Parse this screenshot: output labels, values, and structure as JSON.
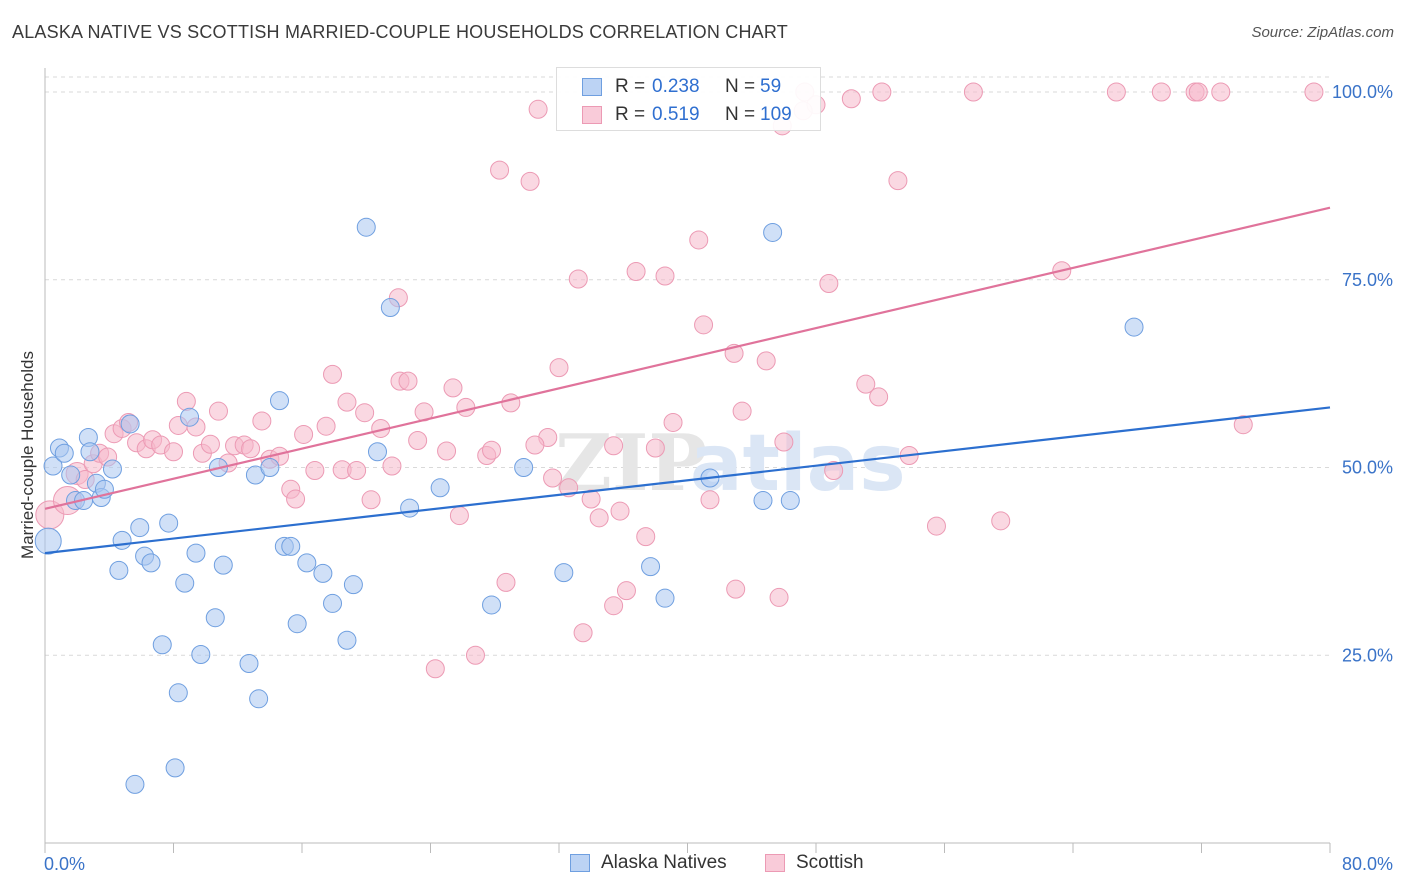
{
  "title": "ALASKA NATIVE VS SCOTTISH MARRIED-COUPLE HOUSEHOLDS CORRELATION CHART",
  "source": "Source: ZipAtlas.com",
  "watermark": {
    "zip": "ZIP",
    "atlas": "atlas"
  },
  "legend_top": {
    "rows": [
      {
        "r_label": "R =",
        "r_value": "0.238",
        "n_label": "N =",
        "n_value": "59"
      },
      {
        "r_label": "R =",
        "r_value": "0.519",
        "n_label": "N =",
        "n_value": "109"
      }
    ]
  },
  "legend_bottom": {
    "items": [
      "Alaska Natives",
      "Scottish"
    ]
  },
  "colors": {
    "blue_fill": "#a9c6f0",
    "blue_stroke": "#6f9fe0",
    "blue_line": "#2c6fcf",
    "pink_fill": "#f6b8cb",
    "pink_stroke": "#ec9ab4",
    "pink_line": "#e0739b",
    "tick_text": "#3a73c8",
    "grid": "#d9d9d9"
  },
  "chart_data": {
    "type": "scatter",
    "title": "ALASKA NATIVE VS SCOTTISH MARRIED-COUPLE HOUSEHOLDS CORRELATION CHART",
    "xlabel": "",
    "ylabel": "Married-couple Households",
    "xlim": [
      0,
      80
    ],
    "ylim": [
      0,
      102
    ],
    "x_tick_labels": [
      "0.0%",
      "80.0%"
    ],
    "y_ticks": [
      25,
      50,
      75,
      100
    ],
    "y_tick_labels": [
      "25.0%",
      "50.0%",
      "75.0%",
      "100.0%"
    ],
    "series": [
      {
        "name": "Alaska Natives",
        "r": 0.238,
        "n": 59,
        "trend": {
          "x": [
            0,
            80
          ],
          "y": [
            38.6,
            58.0
          ]
        },
        "points": [
          [
            0.2,
            40.2,
            13
          ],
          [
            0.5,
            50.2,
            9
          ],
          [
            0.9,
            52.6,
            9
          ],
          [
            1.2,
            51.9,
            9
          ],
          [
            1.6,
            49.0,
            9
          ],
          [
            1.9,
            45.6,
            9
          ],
          [
            2.4,
            45.6,
            9
          ],
          [
            2.7,
            54.0,
            9
          ],
          [
            2.8,
            52.1,
            9
          ],
          [
            3.2,
            47.9,
            9
          ],
          [
            3.5,
            46.0,
            9
          ],
          [
            3.7,
            47.1,
            9
          ],
          [
            4.2,
            49.8,
            9
          ],
          [
            4.6,
            36.3,
            9
          ],
          [
            4.8,
            40.3,
            9
          ],
          [
            5.3,
            55.8,
            9
          ],
          [
            5.9,
            42.0,
            9
          ],
          [
            6.2,
            38.2,
            9
          ],
          [
            6.6,
            37.3,
            9
          ],
          [
            7.3,
            26.4,
            9
          ],
          [
            7.7,
            42.6,
            9
          ],
          [
            8.1,
            10.0,
            9
          ],
          [
            8.3,
            20.0,
            9
          ],
          [
            8.7,
            34.6,
            9
          ],
          [
            9.4,
            38.6,
            9
          ],
          [
            9.0,
            56.7,
            9
          ],
          [
            9.7,
            25.1,
            9
          ],
          [
            10.6,
            30.0,
            9
          ],
          [
            10.8,
            50.0,
            9
          ],
          [
            11.1,
            37.0,
            9
          ],
          [
            12.7,
            23.9,
            9
          ],
          [
            13.1,
            49.0,
            9
          ],
          [
            13.3,
            19.2,
            9
          ],
          [
            14.0,
            50.0,
            9
          ],
          [
            14.6,
            58.9,
            9
          ],
          [
            14.9,
            39.5,
            9
          ],
          [
            15.3,
            39.5,
            9
          ],
          [
            15.7,
            29.2,
            9
          ],
          [
            16.3,
            37.3,
            9
          ],
          [
            17.3,
            35.9,
            9
          ],
          [
            17.9,
            31.9,
            9
          ],
          [
            18.8,
            27.0,
            9
          ],
          [
            19.2,
            34.4,
            9
          ],
          [
            20.0,
            82.0,
            9
          ],
          [
            20.7,
            52.1,
            9
          ],
          [
            21.5,
            71.3,
            9
          ],
          [
            22.7,
            44.6,
            9
          ],
          [
            24.6,
            47.3,
            9
          ],
          [
            27.8,
            31.7,
            9
          ],
          [
            29.8,
            50.0,
            9
          ],
          [
            32.3,
            36.0,
            9
          ],
          [
            37.7,
            36.8,
            9
          ],
          [
            38.6,
            32.6,
            9
          ],
          [
            41.4,
            48.6,
            9
          ],
          [
            44.7,
            45.6,
            9
          ],
          [
            45.3,
            81.3,
            9
          ],
          [
            46.4,
            45.6,
            9
          ],
          [
            67.8,
            68.7,
            9
          ],
          [
            5.6,
            7.8,
            9
          ]
        ]
      },
      {
        "name": "Scottish",
        "r": 0.519,
        "n": 109,
        "trend": {
          "x": [
            0,
            80
          ],
          "y": [
            44.5,
            84.6
          ]
        },
        "points": [
          [
            0.3,
            43.7,
            14
          ],
          [
            1.4,
            45.6,
            14
          ],
          [
            2.0,
            49.2,
            11
          ],
          [
            2.5,
            48.4,
            9
          ],
          [
            3.0,
            50.5,
            9
          ],
          [
            3.4,
            51.9,
            9
          ],
          [
            3.9,
            51.4,
            9
          ],
          [
            4.3,
            54.5,
            9
          ],
          [
            4.8,
            55.2,
            9
          ],
          [
            5.2,
            56.0,
            9
          ],
          [
            5.7,
            53.3,
            9
          ],
          [
            6.3,
            52.5,
            9
          ],
          [
            6.7,
            53.7,
            9
          ],
          [
            7.2,
            53.0,
            9
          ],
          [
            8.0,
            52.1,
            9
          ],
          [
            8.3,
            55.6,
            9
          ],
          [
            8.8,
            58.8,
            9
          ],
          [
            9.4,
            55.4,
            9
          ],
          [
            9.8,
            51.9,
            9
          ],
          [
            10.3,
            53.1,
            9
          ],
          [
            10.8,
            57.5,
            9
          ],
          [
            11.4,
            50.6,
            9
          ],
          [
            11.8,
            52.9,
            9
          ],
          [
            12.4,
            53.0,
            9
          ],
          [
            12.8,
            52.5,
            9
          ],
          [
            13.5,
            56.2,
            9
          ],
          [
            14.0,
            51.1,
            9
          ],
          [
            14.6,
            51.5,
            9
          ],
          [
            15.3,
            47.1,
            9
          ],
          [
            15.6,
            45.8,
            9
          ],
          [
            16.1,
            54.4,
            9
          ],
          [
            16.8,
            49.6,
            9
          ],
          [
            17.5,
            55.5,
            9
          ],
          [
            17.9,
            62.4,
            9
          ],
          [
            18.5,
            49.7,
            9
          ],
          [
            18.8,
            58.7,
            9
          ],
          [
            19.4,
            49.6,
            9
          ],
          [
            19.9,
            57.3,
            9
          ],
          [
            20.3,
            45.7,
            9
          ],
          [
            20.9,
            55.2,
            9
          ],
          [
            21.6,
            50.2,
            9
          ],
          [
            22.0,
            72.6,
            9
          ],
          [
            22.1,
            61.5,
            9
          ],
          [
            22.6,
            61.5,
            9
          ],
          [
            23.2,
            53.6,
            9
          ],
          [
            23.6,
            57.4,
            9
          ],
          [
            24.3,
            23.2,
            9
          ],
          [
            25.0,
            52.2,
            9
          ],
          [
            25.4,
            60.6,
            9
          ],
          [
            25.8,
            43.6,
            9
          ],
          [
            26.2,
            58.0,
            9
          ],
          [
            26.8,
            25.0,
            9
          ],
          [
            27.5,
            51.6,
            9
          ],
          [
            27.8,
            52.3,
            9
          ],
          [
            28.3,
            89.6,
            9
          ],
          [
            28.7,
            34.7,
            9
          ],
          [
            29.0,
            58.6,
            9
          ],
          [
            30.2,
            88.1,
            9
          ],
          [
            30.7,
            97.7,
            9
          ],
          [
            31.3,
            54.0,
            9
          ],
          [
            31.6,
            48.6,
            9
          ],
          [
            32.0,
            63.3,
            9
          ],
          [
            32.6,
            47.3,
            9
          ],
          [
            33.2,
            75.1,
            9
          ],
          [
            33.5,
            28.0,
            9
          ],
          [
            34.0,
            45.8,
            9
          ],
          [
            34.5,
            43.3,
            9
          ],
          [
            35.4,
            52.9,
            9
          ],
          [
            35.8,
            44.2,
            9
          ],
          [
            36.2,
            33.6,
            9
          ],
          [
            36.8,
            76.1,
            9
          ],
          [
            37.4,
            40.8,
            9
          ],
          [
            38.0,
            52.6,
            9
          ],
          [
            38.6,
            75.5,
            9
          ],
          [
            39.1,
            56.0,
            9
          ],
          [
            40.7,
            80.3,
            9
          ],
          [
            41.0,
            69.0,
            9
          ],
          [
            41.4,
            45.7,
            9
          ],
          [
            42.9,
            65.2,
            9
          ],
          [
            43.0,
            33.8,
            9
          ],
          [
            43.4,
            57.5,
            9
          ],
          [
            44.9,
            64.2,
            9
          ],
          [
            45.7,
            32.7,
            9
          ],
          [
            46.0,
            53.4,
            9
          ],
          [
            47.3,
            100.0,
            9
          ],
          [
            48.0,
            98.3,
            9
          ],
          [
            48.8,
            74.5,
            9
          ],
          [
            49.1,
            49.6,
            9
          ],
          [
            50.2,
            99.1,
            9
          ],
          [
            51.1,
            61.1,
            9
          ],
          [
            51.9,
            59.4,
            9
          ],
          [
            52.1,
            100.0,
            9
          ],
          [
            53.1,
            88.2,
            9
          ],
          [
            53.8,
            51.6,
            9
          ],
          [
            55.5,
            42.2,
            9
          ],
          [
            57.8,
            100.0,
            9
          ],
          [
            59.5,
            42.9,
            9
          ],
          [
            63.3,
            76.2,
            9
          ],
          [
            66.7,
            100.0,
            9
          ],
          [
            69.5,
            100.0,
            9
          ],
          [
            71.6,
            100.0,
            9
          ],
          [
            71.8,
            100.0,
            9
          ],
          [
            73.2,
            100.0,
            9
          ],
          [
            74.6,
            55.7,
            9
          ],
          [
            79.0,
            100.0,
            9
          ],
          [
            45.9,
            95.5,
            9
          ],
          [
            35.4,
            31.6,
            9
          ],
          [
            47.2,
            97.5,
            9
          ],
          [
            30.5,
            53.0,
            9
          ]
        ]
      }
    ]
  }
}
